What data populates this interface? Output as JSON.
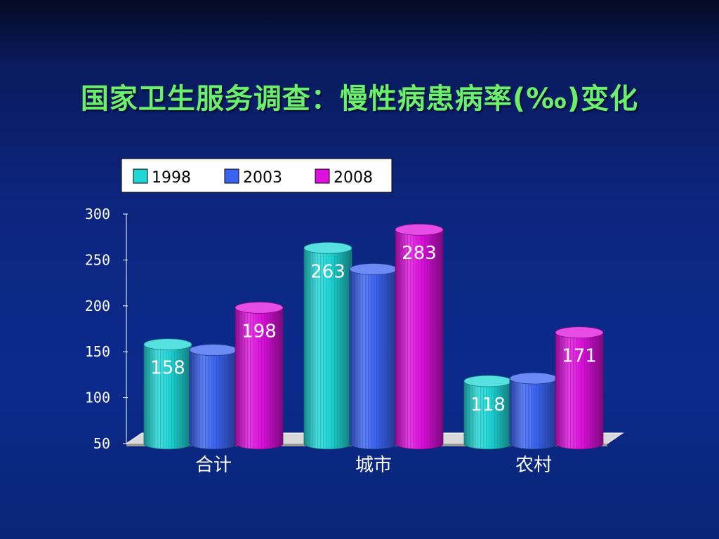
{
  "slide": {
    "title": "国家卫生服务调查：慢性病患病率(‰)变化"
  },
  "colors": {
    "title": "#6cf06c",
    "series": [
      "#1ed6d6",
      "#3a63f0",
      "#dd10dd"
    ]
  },
  "chart_data": {
    "type": "bar",
    "style": "3d-cylinder",
    "categories": [
      "合计",
      "城市",
      "农村"
    ],
    "series": [
      {
        "name": "1998",
        "values": [
          158,
          263,
          118
        ],
        "labels": [
          "158",
          "263",
          "118"
        ]
      },
      {
        "name": "2003",
        "values": [
          152,
          240,
          121
        ],
        "labels": [
          "",
          "",
          ""
        ]
      },
      {
        "name": "2008",
        "values": [
          198,
          283,
          171
        ],
        "labels": [
          "198",
          "283",
          "171"
        ]
      }
    ],
    "ylim": [
      50,
      300
    ],
    "yticks": [
      "300",
      "250",
      "200",
      "150",
      "100",
      "50"
    ],
    "yticks_values": [
      300,
      250,
      200,
      150,
      100,
      50
    ],
    "grid": false,
    "legend_position": "top"
  }
}
